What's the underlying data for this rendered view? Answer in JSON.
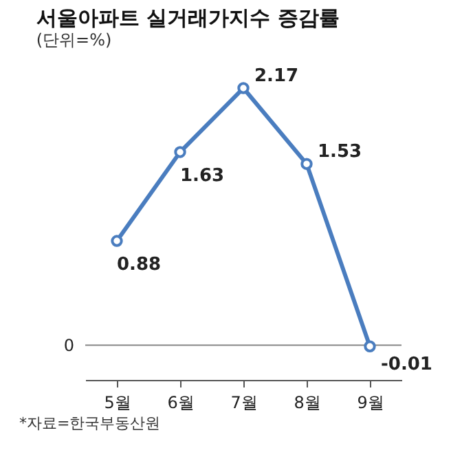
{
  "chart_data": {
    "type": "line",
    "title": "서울아파트 실거래가지수 증감률",
    "subtitle": "(단위=%)",
    "categories": [
      "5월",
      "6월",
      "7월",
      "8월",
      "9월"
    ],
    "series": [
      {
        "color": "#4a7dbf",
        "values": [
          0.88,
          1.63,
          2.17,
          1.53,
          -0.01
        ]
      }
    ],
    "data_labels": true,
    "ref_lines": [
      {
        "axis": "y",
        "value": 0,
        "label": "0",
        "color": "#888888"
      }
    ],
    "marker": "circle",
    "annotations": [
      "*자료=한국부동산원"
    ]
  }
}
